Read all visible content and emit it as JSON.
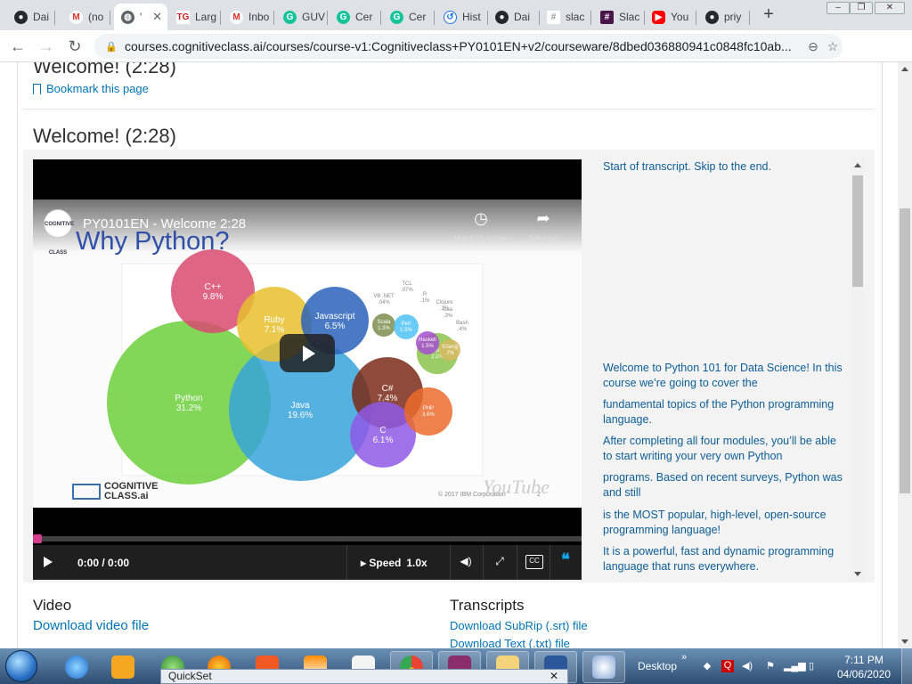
{
  "colors": {
    "accent_link": "#0075b4",
    "transcript_text": "#0d5e96",
    "player_bg": "#000000",
    "progress_knob": "#d53f8c",
    "cc_quote": "#0ea5e9"
  },
  "tabs": [
    {
      "label": "Dai",
      "icon": "github-icon",
      "color": "#24292e"
    },
    {
      "label": "(no",
      "icon": "gmail-icon",
      "color": "#d93025"
    },
    {
      "label": "'",
      "icon": "globe-icon",
      "color": "#5f6368",
      "active": true
    },
    {
      "label": "Larg",
      "icon": "tg-icon",
      "color": "#c5221f"
    },
    {
      "label": "Inbo",
      "icon": "gmail-icon",
      "color": "#d93025"
    },
    {
      "label": "GUV",
      "icon": "grammarly-icon",
      "color": "#15c39a"
    },
    {
      "label": "Cer",
      "icon": "grammarly-icon",
      "color": "#15c39a"
    },
    {
      "label": "Cer",
      "icon": "grammarly-icon",
      "color": "#15c39a"
    },
    {
      "label": "Hist",
      "icon": "history-icon",
      "color": "#1a73e8"
    },
    {
      "label": "Dai",
      "icon": "github-icon",
      "color": "#24292e"
    },
    {
      "label": "slac",
      "icon": "slack-icon",
      "color": "#999999"
    },
    {
      "label": "Slac",
      "icon": "slack-icon",
      "color": "#4a154b"
    },
    {
      "label": "You",
      "icon": "youtube-icon",
      "color": "#ff0000"
    },
    {
      "label": "priy",
      "icon": "github-icon",
      "color": "#24292e"
    }
  ],
  "address": {
    "url": "courses.cognitiveclass.ai/courses/course-v1:Cognitiveclass+PY0101EN+v2/courseware/8dbed036880941c0848fc10ab..."
  },
  "page": {
    "prev_title": "Welcome! (2:28)",
    "bookmark_label": "Bookmark this page",
    "unit_title": "Welcome! (2:28)"
  },
  "video": {
    "title": "PY0101EN - Welcome 2:28",
    "slide_heading": "Why Python?",
    "watch_later": "Watch later",
    "share": "Share",
    "channel_logo_text": "COGNITIVE CLASS",
    "brand_line1": "COGNITIVE",
    "brand_line2": "CLASS.ai",
    "copyright": "© 2017 IBM Corporation",
    "slide_number": "2",
    "yt_logo_text": "YouTube",
    "time": "0:00 / 0:00",
    "speed_label": "Speed",
    "speed_value": "1.0x",
    "progress": 0.0,
    "cc_label": "CC"
  },
  "bubbles": [
    {
      "name": "Python",
      "value": "31.2%",
      "color": "#6ccf3b"
    },
    {
      "name": "Java",
      "value": "19.6%",
      "color": "#37a3d9"
    },
    {
      "name": "C++",
      "value": "9.8%",
      "color": "#d94a70"
    },
    {
      "name": "Ruby",
      "value": "7.1%",
      "color": "#e8c02e"
    },
    {
      "name": "Javascript",
      "value": "6.5%",
      "color": "#2a63b8"
    },
    {
      "name": "C#",
      "value": "7.4%",
      "color": "#7a2a17"
    },
    {
      "name": "C",
      "value": "6.1%",
      "color": "#8e59e6"
    },
    {
      "name": "PHP",
      "value": "3.6%",
      "color": "#ec6b2d"
    },
    {
      "name": "Go",
      "value": "2.1%",
      "color": "#8bc34a"
    },
    {
      "name": "Scala",
      "value": "1.3%",
      "color": "#7b8e4c"
    },
    {
      "name": "Perl",
      "value": "1.5%",
      "color": "#4fc3f7"
    },
    {
      "name": "Haskell",
      "value": "1.5%",
      "color": "#a64ccf"
    },
    {
      "name": "Erlang",
      "value": ".7%",
      "color": "#d7b761"
    },
    {
      "name": "VB .NET",
      "value": ".04%",
      "color": "#8aa"
    },
    {
      "name": "TCL",
      "value": ".07%",
      "color": "#bbb"
    },
    {
      "name": "R",
      "value": ".1%",
      "color": "#bbb"
    },
    {
      "name": "Clojure",
      "value": ".2%",
      "color": "#bbb"
    },
    {
      "name": "Lua",
      "value": ".3%",
      "color": "#bbb"
    },
    {
      "name": "Bash",
      "value": ".4%",
      "color": "#bbb"
    }
  ],
  "transcript": {
    "lines": [
      "Start of transcript. Skip to the end.",
      "Welcome to Python 101 for Data Science! In this course we’re going to cover the",
      "fundamental topics of the Python programming language.",
      "After completing all four modules, you’ll be able to start writing your very own Python",
      "programs. Based on recent surveys, Python was and still",
      "is the MOST popular, high-level, open-source programming language!",
      "It is a powerful, fast and dynamic programming language that runs everywhere."
    ]
  },
  "downloads": {
    "video_heading": "Video",
    "video_link": "Download video file",
    "transcripts_heading": "Transcripts",
    "srt_link": "Download SubRip (.srt) file",
    "txt_link": "Download Text (.txt) file"
  },
  "taskbar": {
    "quickset_label": "QuickSet",
    "desktop_label": "Desktop",
    "time": "7:11 PM",
    "date": "04/06/2020"
  }
}
